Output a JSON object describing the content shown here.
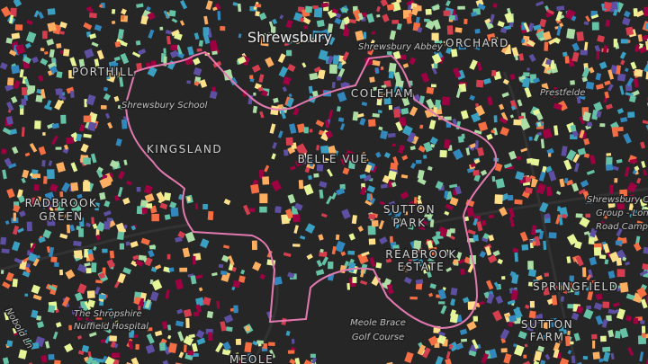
{
  "map": {
    "labels": {
      "town": "Shrewsbury",
      "abbey": "Shrewsbury Abbey",
      "orchard": "ORCHARD",
      "porthill": "PORTHILL",
      "coleham": "COLEHAM",
      "school": "Shrewsbury School",
      "kingsland": "KINGSLAND",
      "bellevue": "BELLE VUE",
      "sutton": [
        "SUTTON",
        "PARK"
      ],
      "reabrook": [
        "REABROOK",
        "ESTATE"
      ],
      "radbrook": [
        "RADBROOK",
        "GREEN"
      ],
      "golf": [
        "Meole Brace",
        "Golf Course"
      ],
      "springfield": "SPRINGFIELD",
      "suttonfarm": [
        "SUTTON",
        "FARM"
      ],
      "prestfelde": "Prestfelde",
      "college": [
        "Shrewsbury Colleges",
        "Group - London",
        "Road Campus"
      ],
      "nobold": "Nobold Ln",
      "hospital": [
        "The Shropshire",
        "Nuffield Hospital"
      ],
      "meole": "MEOLE"
    }
  }
}
